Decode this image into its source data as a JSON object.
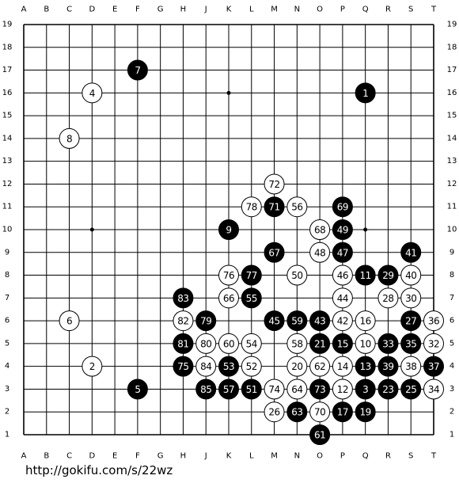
{
  "columns": [
    "A",
    "B",
    "C",
    "D",
    "E",
    "F",
    "G",
    "H",
    "J",
    "K",
    "L",
    "M",
    "N",
    "O",
    "P",
    "Q",
    "R",
    "S",
    "T"
  ],
  "rows": [
    19,
    18,
    17,
    16,
    15,
    14,
    13,
    12,
    11,
    10,
    9,
    8,
    7,
    6,
    5,
    4,
    3,
    2,
    1
  ],
  "stones": [
    {
      "col": "F",
      "row": 17,
      "color": "black",
      "number": 7
    },
    {
      "col": "D",
      "row": 16,
      "color": "white",
      "number": 4
    },
    {
      "col": "Q",
      "row": 16,
      "color": "black",
      "number": 1
    },
    {
      "col": "C",
      "row": 14,
      "color": "white",
      "number": 8
    },
    {
      "col": "M",
      "row": 12,
      "color": "white",
      "number": 72
    },
    {
      "col": "L",
      "row": 11,
      "color": "white",
      "number": 78
    },
    {
      "col": "M",
      "row": 11,
      "color": "black",
      "number": 71
    },
    {
      "col": "N",
      "row": 11,
      "color": "white",
      "number": 56
    },
    {
      "col": "P",
      "row": 11,
      "color": "black",
      "number": 69
    },
    {
      "col": "K",
      "row": 10,
      "color": "black",
      "number": 9
    },
    {
      "col": "O",
      "row": 10,
      "color": "white",
      "number": 68
    },
    {
      "col": "P",
      "row": 10,
      "color": "black",
      "number": 49
    },
    {
      "col": "M",
      "row": 9,
      "color": "black",
      "number": 67
    },
    {
      "col": "O",
      "row": 9,
      "color": "white",
      "number": 48
    },
    {
      "col": "P",
      "row": 9,
      "color": "black",
      "number": 47
    },
    {
      "col": "S",
      "row": 9,
      "color": "black",
      "number": 41
    },
    {
      "col": "K",
      "row": 8,
      "color": "white",
      "number": 76
    },
    {
      "col": "L",
      "row": 8,
      "color": "black",
      "number": 77
    },
    {
      "col": "N",
      "row": 8,
      "color": "white",
      "number": 50
    },
    {
      "col": "P",
      "row": 8,
      "color": "white",
      "number": 46
    },
    {
      "col": "Q",
      "row": 8,
      "color": "black",
      "number": 11
    },
    {
      "col": "R",
      "row": 8,
      "color": "black",
      "number": 29
    },
    {
      "col": "S",
      "row": 8,
      "color": "white",
      "number": 40
    },
    {
      "col": "H",
      "row": 7,
      "color": "black",
      "number": 83
    },
    {
      "col": "K",
      "row": 7,
      "color": "white",
      "number": 66
    },
    {
      "col": "L",
      "row": 7,
      "color": "black",
      "number": 55
    },
    {
      "col": "P",
      "row": 7,
      "color": "white",
      "number": 44
    },
    {
      "col": "R",
      "row": 7,
      "color": "white",
      "number": 28
    },
    {
      "col": "S",
      "row": 7,
      "color": "white",
      "number": 30
    },
    {
      "col": "C",
      "row": 6,
      "color": "white",
      "number": 6
    },
    {
      "col": "H",
      "row": 6,
      "color": "white",
      "number": 82
    },
    {
      "col": "J",
      "row": 6,
      "color": "black",
      "number": 79
    },
    {
      "col": "M",
      "row": 6,
      "color": "black",
      "number": 45
    },
    {
      "col": "N",
      "row": 6,
      "color": "black",
      "number": 59
    },
    {
      "col": "O",
      "row": 6,
      "color": "black",
      "number": 43
    },
    {
      "col": "P",
      "row": 6,
      "color": "white",
      "number": 42
    },
    {
      "col": "Q",
      "row": 6,
      "color": "white",
      "number": 16
    },
    {
      "col": "S",
      "row": 6,
      "color": "black",
      "number": 27
    },
    {
      "col": "T",
      "row": 6,
      "color": "white",
      "number": 36
    },
    {
      "col": "H",
      "row": 5,
      "color": "black",
      "number": 81
    },
    {
      "col": "J",
      "row": 5,
      "color": "white",
      "number": 80
    },
    {
      "col": "K",
      "row": 5,
      "color": "white",
      "number": 60
    },
    {
      "col": "L",
      "row": 5,
      "color": "white",
      "number": 54
    },
    {
      "col": "N",
      "row": 5,
      "color": "white",
      "number": 58
    },
    {
      "col": "O",
      "row": 5,
      "color": "black",
      "number": 21
    },
    {
      "col": "P",
      "row": 5,
      "color": "black",
      "number": 15
    },
    {
      "col": "Q",
      "row": 5,
      "color": "white",
      "number": 10
    },
    {
      "col": "R",
      "row": 5,
      "color": "black",
      "number": 33
    },
    {
      "col": "S",
      "row": 5,
      "color": "black",
      "number": 35
    },
    {
      "col": "T",
      "row": 5,
      "color": "white",
      "number": 32
    },
    {
      "col": "D",
      "row": 4,
      "color": "white",
      "number": 2
    },
    {
      "col": "H",
      "row": 4,
      "color": "black",
      "number": 75
    },
    {
      "col": "J",
      "row": 4,
      "color": "white",
      "number": 84
    },
    {
      "col": "K",
      "row": 4,
      "color": "black",
      "number": 53
    },
    {
      "col": "L",
      "row": 4,
      "color": "white",
      "number": 52
    },
    {
      "col": "N",
      "row": 4,
      "color": "white",
      "number": 20
    },
    {
      "col": "O",
      "row": 4,
      "color": "white",
      "number": 62
    },
    {
      "col": "P",
      "row": 4,
      "color": "white",
      "number": 14
    },
    {
      "col": "Q",
      "row": 4,
      "color": "black",
      "number": 13
    },
    {
      "col": "R",
      "row": 4,
      "color": "black",
      "number": 39
    },
    {
      "col": "S",
      "row": 4,
      "color": "white",
      "number": 38
    },
    {
      "col": "T",
      "row": 4,
      "color": "black",
      "number": 37
    },
    {
      "col": "F",
      "row": 3,
      "color": "black",
      "number": 5
    },
    {
      "col": "J",
      "row": 3,
      "color": "black",
      "number": 85
    },
    {
      "col": "K",
      "row": 3,
      "color": "black",
      "number": 57
    },
    {
      "col": "L",
      "row": 3,
      "color": "black",
      "number": 51
    },
    {
      "col": "M",
      "row": 3,
      "color": "white",
      "number": 74
    },
    {
      "col": "N",
      "row": 3,
      "color": "white",
      "number": 64
    },
    {
      "col": "O",
      "row": 3,
      "color": "black",
      "number": 73
    },
    {
      "col": "P",
      "row": 3,
      "color": "white",
      "number": 12
    },
    {
      "col": "Q",
      "row": 3,
      "color": "black",
      "number": 3
    },
    {
      "col": "R",
      "row": 3,
      "color": "black",
      "number": 23
    },
    {
      "col": "S",
      "row": 3,
      "color": "black",
      "number": 25
    },
    {
      "col": "T",
      "row": 3,
      "color": "white",
      "number": 34
    },
    {
      "col": "M",
      "row": 2,
      "color": "white",
      "number": 26
    },
    {
      "col": "N",
      "row": 2,
      "color": "black",
      "number": 63
    },
    {
      "col": "O",
      "row": 2,
      "color": "white",
      "number": 70
    },
    {
      "col": "P",
      "row": 2,
      "color": "black",
      "number": 17
    },
    {
      "col": "Q",
      "row": 2,
      "color": "black",
      "number": 19
    },
    {
      "col": "O",
      "row": 1,
      "color": "black",
      "number": 61
    }
  ],
  "footer": "http://gokifu.com/s/22wz"
}
